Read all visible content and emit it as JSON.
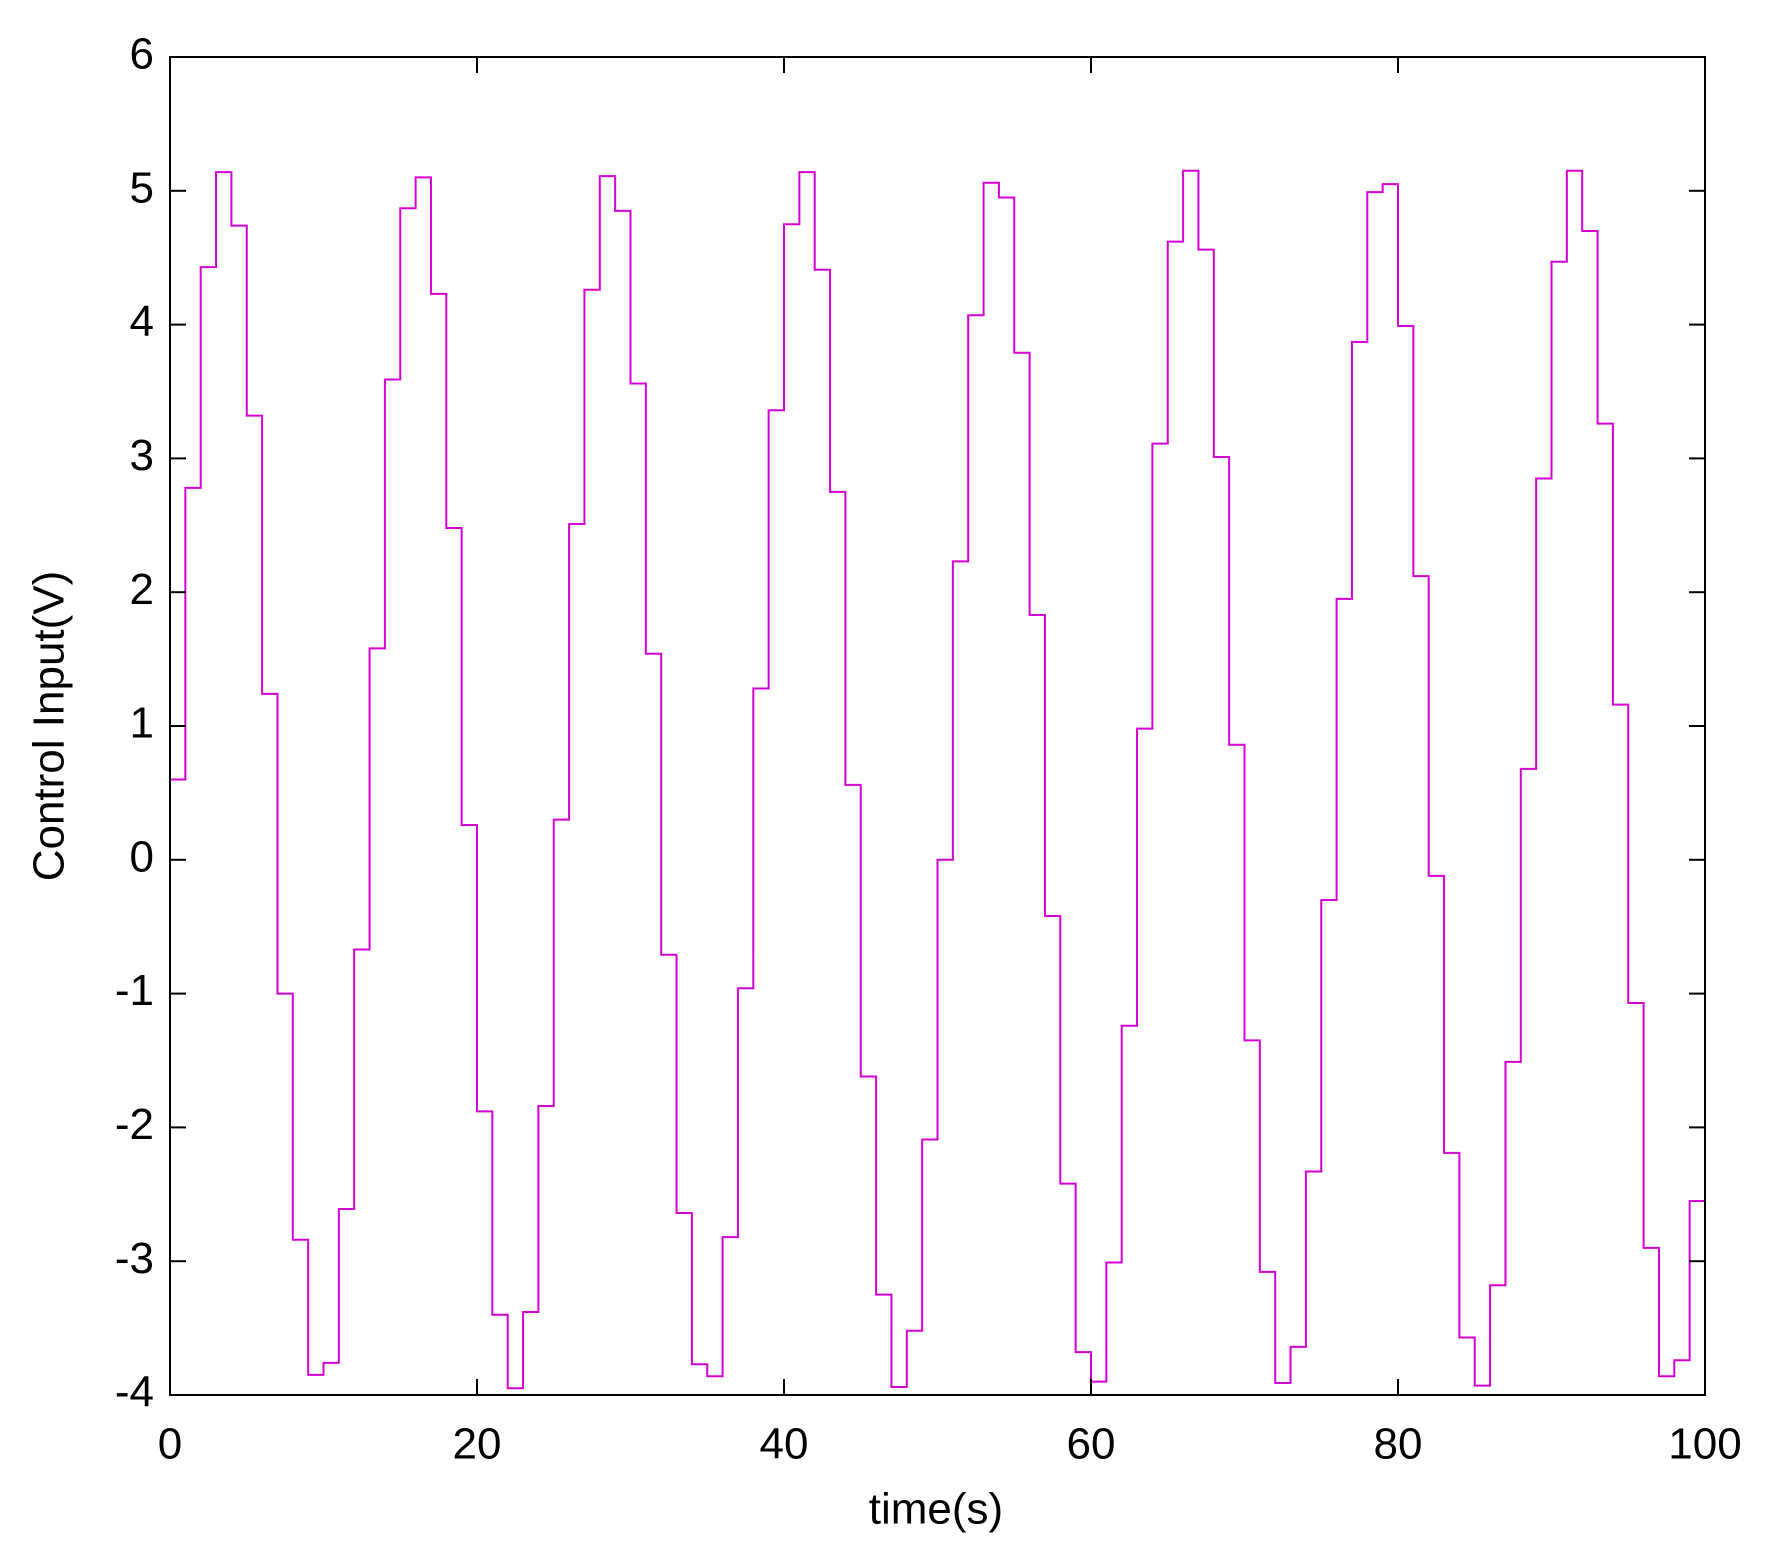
{
  "chart_data": {
    "type": "line",
    "drawstyle": "steps-post",
    "xlabel": "time(s)",
    "ylabel": "Control Input(V)",
    "x": [
      0,
      1,
      2,
      3,
      4,
      5,
      6,
      7,
      8,
      9,
      10,
      11,
      12,
      13,
      14,
      15,
      16,
      17,
      18,
      19,
      20,
      21,
      22,
      23,
      24,
      25,
      26,
      27,
      28,
      29,
      30,
      31,
      32,
      33,
      34,
      35,
      36,
      37,
      38,
      39,
      40,
      41,
      42,
      43,
      44,
      45,
      46,
      47,
      48,
      49,
      50,
      51,
      52,
      53,
      54,
      55,
      56,
      57,
      58,
      59,
      60,
      61,
      62,
      63,
      64,
      65,
      66,
      67,
      68,
      69,
      70,
      71,
      72,
      73,
      74,
      75,
      76,
      77,
      78,
      79,
      80,
      81,
      82,
      83,
      84,
      85,
      86,
      87,
      88,
      89,
      90,
      91,
      92,
      93,
      94,
      95,
      96,
      97,
      98,
      99,
      100
    ],
    "series": [
      {
        "color": "#d400d4",
        "values": [
          0.6,
          2.78,
          4.43,
          5.14,
          4.74,
          3.32,
          1.24,
          -1.0,
          -2.84,
          -3.85,
          -3.76,
          -2.61,
          -0.67,
          1.58,
          3.59,
          4.87,
          5.1,
          4.23,
          2.48,
          0.26,
          -1.88,
          -3.4,
          -3.95,
          -3.38,
          -1.84,
          0.3,
          2.51,
          4.26,
          5.11,
          4.85,
          3.56,
          1.54,
          -0.71,
          -2.64,
          -3.77,
          -3.86,
          -2.82,
          -0.96,
          1.28,
          3.36,
          4.75,
          5.14,
          4.41,
          2.75,
          0.56,
          -1.62,
          -3.25,
          -3.94,
          -3.52,
          -2.09,
          0.0,
          2.23,
          4.07,
          5.06,
          4.95,
          3.79,
          1.83,
          -0.42,
          -2.42,
          -3.68,
          -3.9,
          -3.01,
          -1.24,
          0.98,
          3.11,
          4.62,
          5.15,
          4.56,
          3.01,
          0.86,
          -1.35,
          -3.08,
          -3.91,
          -3.64,
          -2.33,
          -0.3,
          1.95,
          3.87,
          4.99,
          5.05,
          3.99,
          2.12,
          -0.12,
          -2.19,
          -3.57,
          -3.93,
          -3.18,
          -1.51,
          0.68,
          2.85,
          4.47,
          5.15,
          4.7,
          3.26,
          1.16,
          -1.07,
          -2.9,
          -3.86,
          -3.74,
          -2.55,
          -0.59
        ]
      }
    ],
    "xlim": [
      0,
      100
    ],
    "xticks": [
      0,
      20,
      40,
      60,
      80,
      100
    ],
    "ylim": [
      -4,
      6
    ],
    "yticks": [
      -4,
      -3,
      -2,
      -1,
      0,
      1,
      2,
      3,
      4,
      5,
      6
    ],
    "grid": false
  }
}
